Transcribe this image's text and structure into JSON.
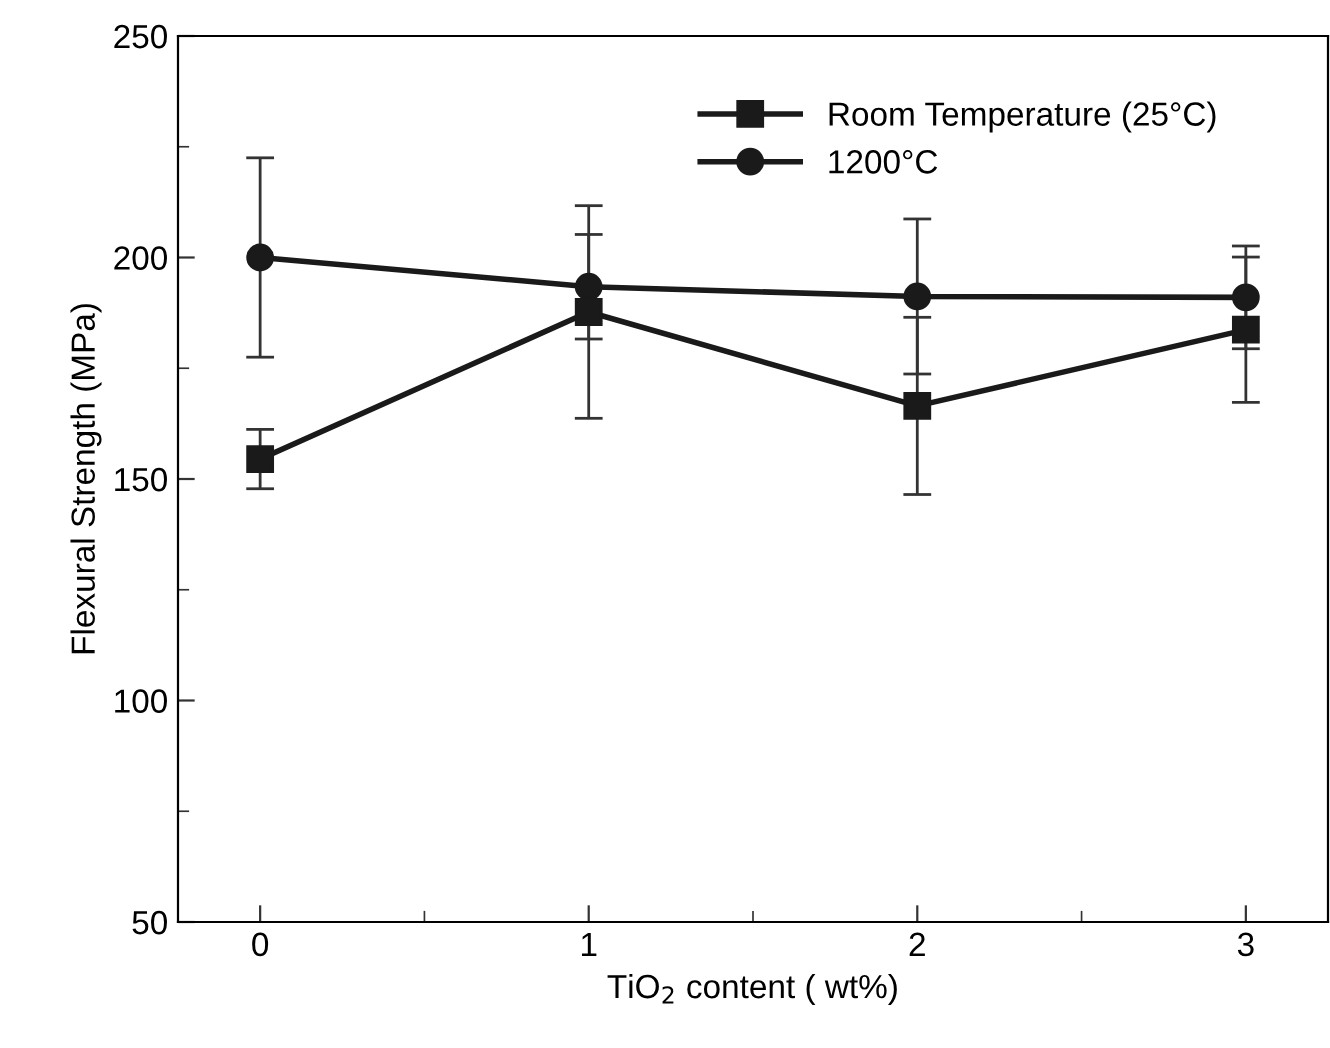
{
  "chart_data": {
    "type": "line",
    "xlabel": "TiO$_{2}$ content ( wt%)",
    "ylabel": "Flexural Strength (MPa)",
    "x": [
      0,
      1,
      2,
      3
    ],
    "xlim": [
      -0.25,
      3.25
    ],
    "xticks": [
      0,
      1,
      2,
      3
    ],
    "ylim": [
      50,
      250
    ],
    "yticks": [
      50,
      100,
      150,
      200,
      250
    ],
    "series": [
      {
        "name": "Room Temperature (25°C)",
        "color": "#1a1a1a",
        "marker": "square",
        "values": [
          154.5,
          187.7,
          166.5,
          183.7
        ],
        "errors": [
          6.7,
          24,
          20,
          16.4
        ]
      },
      {
        "name": "1200°C",
        "color": "#1a1a1a",
        "marker": "circle",
        "values": [
          200,
          193.4,
          191.2,
          191
        ],
        "errors": [
          22.5,
          11.8,
          17.5,
          11.6
        ]
      }
    ],
    "legend": "top right",
    "grid": false,
    "line_style": "solid"
  }
}
